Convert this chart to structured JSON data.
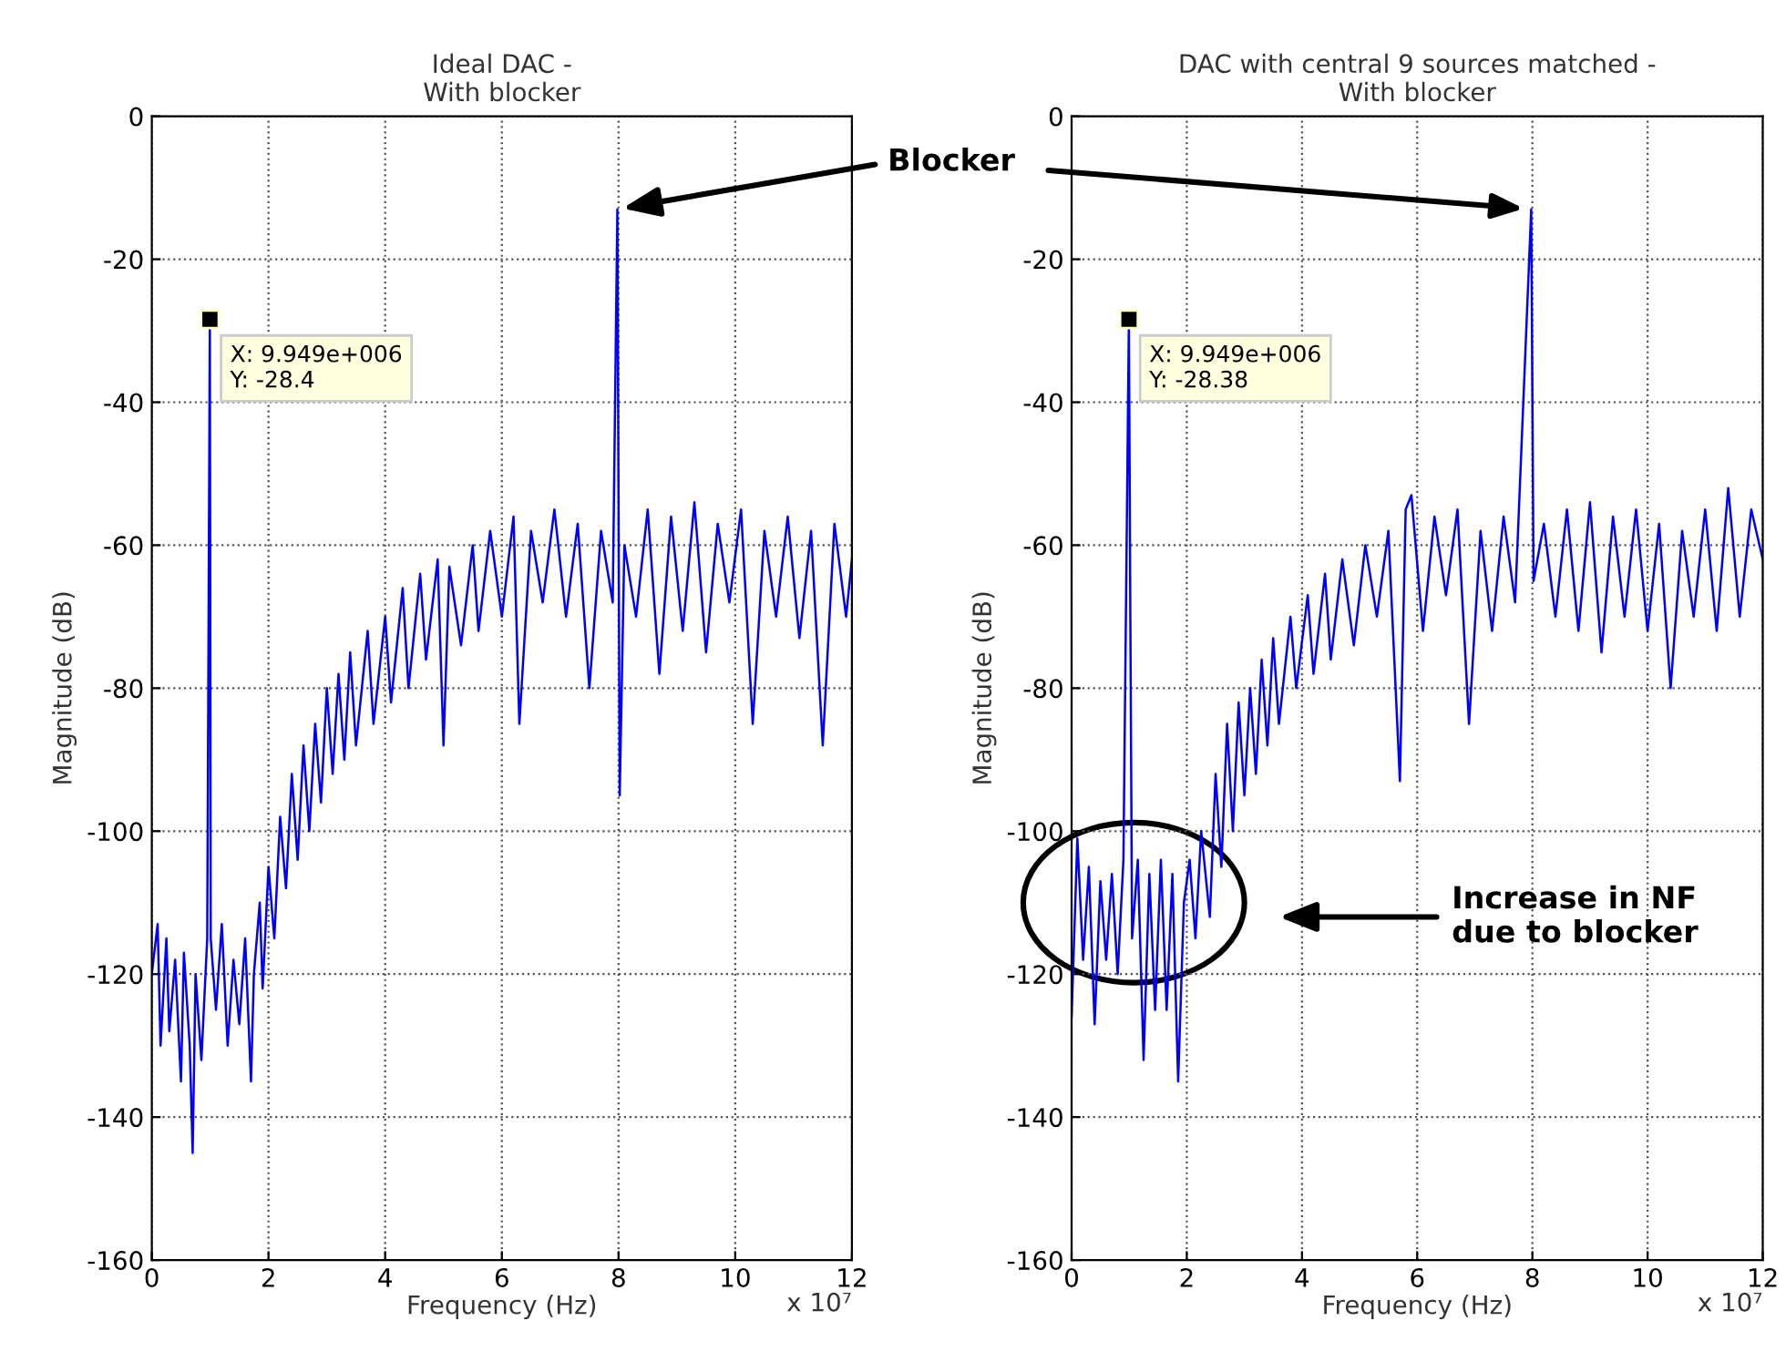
{
  "chart_data": [
    {
      "type": "line",
      "title": "Ideal DAC -\nWith blocker",
      "xlabel": "Frequency (Hz)",
      "ylabel": "Magnitude (dB)",
      "xlim": [
        0,
        12
      ],
      "ylim": [
        -160,
        0
      ],
      "xticks": [
        0,
        2,
        4,
        6,
        8,
        10,
        12
      ],
      "yticks": [
        -160,
        -140,
        -120,
        -100,
        -80,
        -60,
        -40,
        -20,
        0
      ],
      "grid": true,
      "line_style": "solid",
      "series": [
        {
          "color": "#0000ff",
          "x": [
            0,
            0.1,
            0.15,
            0.25,
            0.3,
            0.4,
            0.5,
            0.55,
            0.65,
            0.7,
            0.75,
            0.85,
            0.95,
            0.9949,
            1.01,
            1.1,
            1.2,
            1.3,
            1.4,
            1.5,
            1.6,
            1.7,
            1.75,
            1.85,
            1.9,
            2,
            2.1,
            2.2,
            2.3,
            2.4,
            2.5,
            2.6,
            2.7,
            2.8,
            2.9,
            3,
            3.1,
            3.2,
            3.3,
            3.4,
            3.5,
            3.7,
            3.8,
            4,
            4.1,
            4.3,
            4.4,
            4.6,
            4.7,
            4.9,
            5,
            5.1,
            5.3,
            5.5,
            5.6,
            5.8,
            6,
            6.2,
            6.3,
            6.5,
            6.7,
            6.9,
            7.1,
            7.3,
            7.5,
            7.7,
            7.9,
            7.98,
            8.02,
            8.1,
            8.3,
            8.5,
            8.7,
            8.9,
            9.1,
            9.3,
            9.5,
            9.7,
            9.9,
            10.1,
            10.3,
            10.5,
            10.7,
            10.9,
            11.1,
            11.3,
            11.5,
            11.7,
            11.9,
            12
          ],
          "values": [
            -120,
            -113,
            -130,
            -115,
            -128,
            -118,
            -135,
            -117,
            -130,
            -145,
            -120,
            -132,
            -115,
            -28.4,
            -115,
            -125,
            -113,
            -130,
            -118,
            -127,
            -115,
            -135,
            -120,
            -110,
            -122,
            -105,
            -115,
            -98,
            -108,
            -92,
            -104,
            -88,
            -100,
            -85,
            -96,
            -80,
            -92,
            -78,
            -90,
            -75,
            -88,
            -72,
            -85,
            -70,
            -82,
            -66,
            -80,
            -64,
            -76,
            -62,
            -88,
            -63,
            -74,
            -60,
            -72,
            -58,
            -70,
            -56,
            -85,
            -58,
            -68,
            -55,
            -70,
            -57,
            -80,
            -58,
            -68,
            -13,
            -95,
            -60,
            -70,
            -55,
            -78,
            -56,
            -72,
            -54,
            -75,
            -57,
            -68,
            -55,
            -85,
            -58,
            -70,
            -56,
            -73,
            -58,
            -88,
            -57,
            -70,
            -62
          ]
        }
      ],
      "annotations": [
        "X: 9.949e+006\nY: -28.4",
        "x 10⁷",
        {
          "text": "Blocker",
          "x": 7.98,
          "y": -13
        }
      ]
    },
    {
      "type": "line",
      "title": "DAC with central 9 sources matched -\nWith blocker",
      "xlabel": "Frequency (Hz)",
      "ylabel": "Magnitude (dB)",
      "xlim": [
        0,
        12
      ],
      "ylim": [
        -160,
        0
      ],
      "xticks": [
        0,
        2,
        4,
        6,
        8,
        10,
        12
      ],
      "yticks": [
        -160,
        -140,
        -120,
        -100,
        -80,
        -60,
        -40,
        -20,
        0
      ],
      "grid": true,
      "line_style": "solid",
      "series": [
        {
          "color": "#0000ff",
          "x": [
            0,
            0.1,
            0.2,
            0.3,
            0.4,
            0.5,
            0.6,
            0.7,
            0.8,
            0.9,
            0.9949,
            1.02,
            1.05,
            1.15,
            1.25,
            1.35,
            1.45,
            1.55,
            1.65,
            1.75,
            1.85,
            1.95,
            2.05,
            2.15,
            2.25,
            2.4,
            2.5,
            2.6,
            2.7,
            2.8,
            2.9,
            3,
            3.1,
            3.2,
            3.3,
            3.4,
            3.5,
            3.6,
            3.8,
            3.9,
            4.1,
            4.2,
            4.4,
            4.5,
            4.7,
            4.9,
            5.1,
            5.3,
            5.5,
            5.7,
            5.8,
            5.9,
            6.1,
            6.3,
            6.5,
            6.7,
            6.9,
            7.1,
            7.3,
            7.5,
            7.7,
            7.98,
            8.02,
            8.2,
            8.4,
            8.6,
            8.8,
            9,
            9.2,
            9.4,
            9.6,
            9.8,
            10,
            10.2,
            10.4,
            10.6,
            10.8,
            11,
            11.2,
            11.4,
            11.6,
            11.8,
            12
          ],
          "values": [
            -126,
            -101,
            -118,
            -105,
            -127,
            -107,
            -118,
            -106,
            -120,
            -104,
            -28.38,
            -70,
            -115,
            -104,
            -132,
            -106,
            -125,
            -104,
            -125,
            -106,
            -135,
            -110,
            -104,
            -115,
            -100,
            -112,
            -92,
            -105,
            -85,
            -100,
            -82,
            -95,
            -80,
            -92,
            -76,
            -88,
            -73,
            -85,
            -70,
            -80,
            -67,
            -78,
            -64,
            -76,
            -62,
            -74,
            -60,
            -70,
            -58,
            -93,
            -55,
            -53,
            -72,
            -56,
            -67,
            -55,
            -85,
            -58,
            -72,
            -56,
            -68,
            -13,
            -65,
            -57,
            -70,
            -55,
            -72,
            -54,
            -75,
            -56,
            -70,
            -55,
            -72,
            -57,
            -80,
            -58,
            -70,
            -55,
            -72,
            -52,
            -70,
            -55,
            -62
          ]
        }
      ],
      "annotations": [
        "X: 9.949e+006\nY: -28.38",
        "x 10⁷",
        "Increase in NF\ndue to blocker"
      ]
    }
  ]
}
